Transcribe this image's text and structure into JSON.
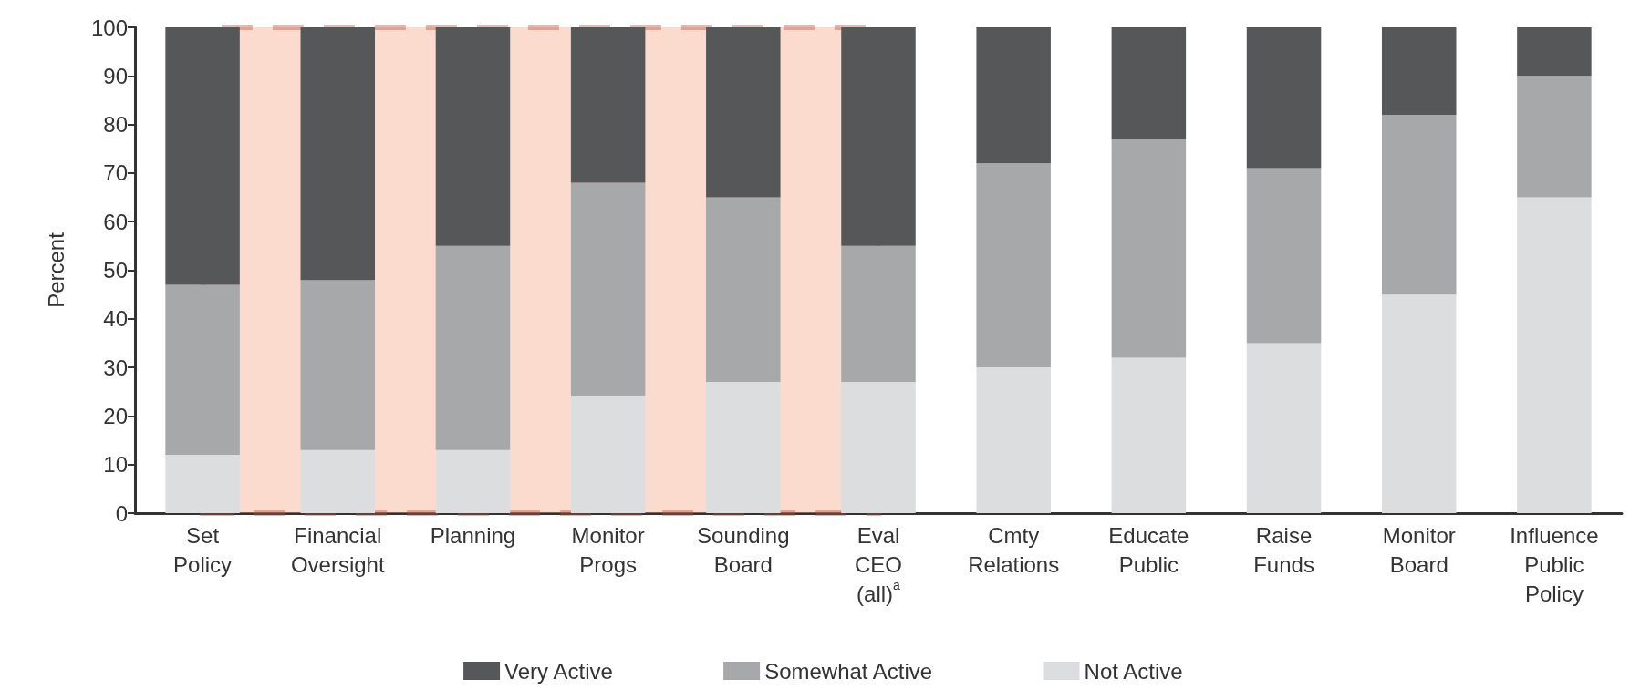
{
  "chart_data": {
    "type": "bar",
    "stacked": true,
    "ylabel": "Percent",
    "categories": [
      "Set\nPolicy",
      "Financial\nOversight",
      "Planning",
      "Monitor\nProgs",
      "Sounding\nBoard",
      "Eval\nCEO\n(all)$^{a}$",
      "Cmty\nRelations",
      "Educate\nPublic",
      "Raise\nFunds",
      "Monitor\nBoard",
      "Influence\nPublic\nPolicy"
    ],
    "series": [
      {
        "name": "Not Active",
        "color": "#dcdddf",
        "values": [
          12,
          13,
          13,
          24,
          27,
          27,
          30,
          32,
          35,
          45,
          65
        ]
      },
      {
        "name": "Somewhat Active",
        "color": "#a7a8aa",
        "values": [
          35,
          35,
          42,
          44,
          38,
          28,
          42,
          45,
          36,
          37,
          25
        ]
      },
      {
        "name": "Very Active",
        "color": "#555759",
        "values": [
          53,
          52,
          45,
          32,
          35,
          45,
          28,
          23,
          29,
          18,
          10
        ]
      }
    ],
    "ylim": [
      0,
      100
    ],
    "yticks": [
      0,
      10,
      20,
      30,
      40,
      50,
      60,
      70,
      80,
      90,
      100
    ],
    "grid": false,
    "legend": "bottom",
    "bands": [
      {
        "axis": "x",
        "from": "Set\nPolicy",
        "to": "Eval\nCEO\n(all)$^{a}$",
        "color": "#f4a582"
      }
    ]
  }
}
